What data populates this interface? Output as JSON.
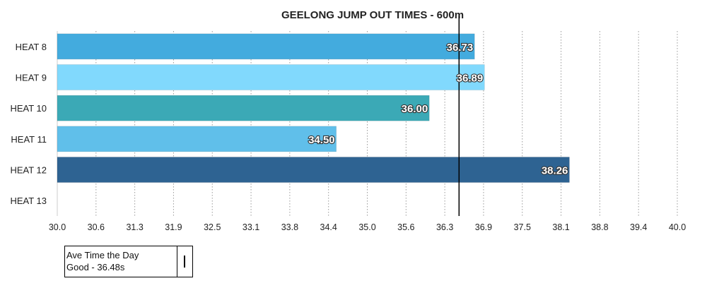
{
  "chart_data": {
    "type": "bar",
    "orientation": "horizontal",
    "title": "GEELONG JUMP OUT TIMES - 600m",
    "categories": [
      "HEAT 8",
      "HEAT 9",
      "HEAT 10",
      "HEAT 11",
      "HEAT 12",
      "HEAT 13"
    ],
    "values": [
      36.73,
      36.89,
      36.0,
      34.5,
      38.26,
      null
    ],
    "value_labels": [
      "36.73",
      "36.89",
      "36.00",
      "34.50",
      "38.26",
      ""
    ],
    "colors": [
      "#43ABDE",
      "#81D9FD",
      "#3BA9B6",
      "#60BFEA",
      "#2E6392",
      null
    ],
    "xlim": [
      30.0,
      40.0
    ],
    "xticks": [
      "30.0",
      "30.6",
      "31.3",
      "31.9",
      "32.5",
      "33.1",
      "33.8",
      "34.4",
      "35.0",
      "35.6",
      "36.3",
      "36.9",
      "37.5",
      "38.1",
      "38.8",
      "39.4",
      "40.0"
    ],
    "grid": "vertical-dotted",
    "reference_line": {
      "value": 36.48
    },
    "legend": {
      "placement": "bottom-left",
      "text": [
        "Ave Time the Day",
        "Good - 36.48s"
      ]
    }
  }
}
